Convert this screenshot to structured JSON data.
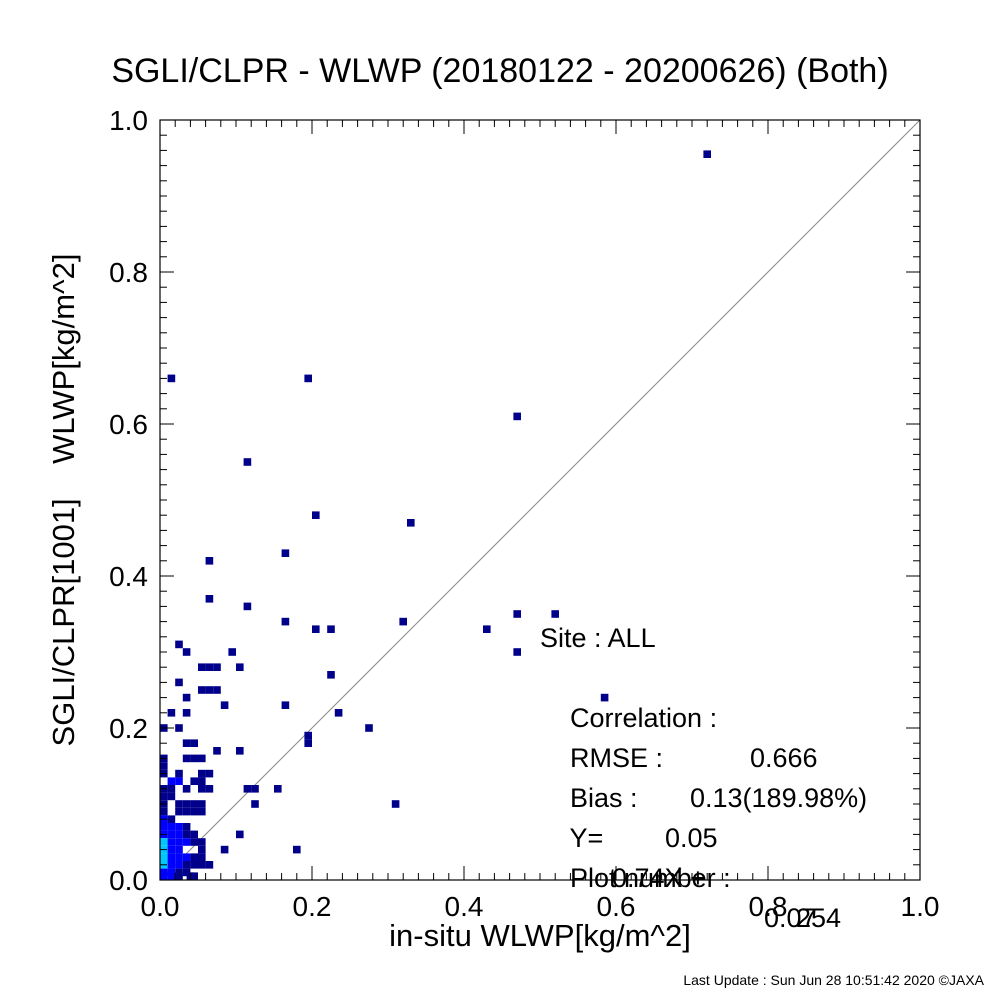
{
  "chart_data": {
    "type": "heatmap",
    "title": "SGLI/CLPR - WLWP (20180122 - 20200626) (Both)",
    "xlabel": "in-situ WLWP[kg/m^2]",
    "ylabel": "SGLI/CLPR[1001]    WLWP[kg/m^2]",
    "xlim": [
      0.0,
      1.0
    ],
    "ylim": [
      0.0,
      1.0
    ],
    "x_ticks": [
      "0.0",
      "0.2",
      "0.4",
      "0.6",
      "0.8",
      "1.0"
    ],
    "y_ticks": [
      "0.0",
      "0.2",
      "0.4",
      "0.6",
      "0.8",
      "1.0"
    ],
    "reference_line": "1:1",
    "colors": {
      "low": "#00008b",
      "mid": "#0000ff",
      "high": "#00c8ff",
      "line": "#888888"
    },
    "points": [
      [
        0.72,
        0.955,
        1
      ],
      [
        0.015,
        0.66,
        1
      ],
      [
        0.195,
        0.66,
        1
      ],
      [
        0.47,
        0.61,
        1
      ],
      [
        0.115,
        0.55,
        1
      ],
      [
        0.205,
        0.48,
        1
      ],
      [
        0.33,
        0.47,
        1
      ],
      [
        0.165,
        0.43,
        1
      ],
      [
        0.065,
        0.42,
        1
      ],
      [
        0.065,
        0.37,
        1
      ],
      [
        0.115,
        0.36,
        1
      ],
      [
        0.47,
        0.35,
        1
      ],
      [
        0.52,
        0.35,
        1
      ],
      [
        0.165,
        0.34,
        1
      ],
      [
        0.32,
        0.34,
        1
      ],
      [
        0.205,
        0.33,
        1
      ],
      [
        0.225,
        0.33,
        1
      ],
      [
        0.43,
        0.33,
        1
      ],
      [
        0.025,
        0.31,
        1
      ],
      [
        0.035,
        0.3,
        1
      ],
      [
        0.095,
        0.3,
        1
      ],
      [
        0.47,
        0.3,
        1
      ],
      [
        0.055,
        0.28,
        1
      ],
      [
        0.065,
        0.28,
        1
      ],
      [
        0.075,
        0.28,
        1
      ],
      [
        0.105,
        0.28,
        1
      ],
      [
        0.225,
        0.27,
        1
      ],
      [
        0.025,
        0.26,
        1
      ],
      [
        0.055,
        0.25,
        1
      ],
      [
        0.065,
        0.25,
        1
      ],
      [
        0.075,
        0.25,
        1
      ],
      [
        0.035,
        0.24,
        1
      ],
      [
        0.585,
        0.24,
        1
      ],
      [
        0.085,
        0.23,
        1
      ],
      [
        0.165,
        0.23,
        1
      ],
      [
        0.015,
        0.22,
        1
      ],
      [
        0.035,
        0.22,
        1
      ],
      [
        0.235,
        0.22,
        1
      ],
      [
        0.005,
        0.2,
        1
      ],
      [
        0.025,
        0.2,
        1
      ],
      [
        0.275,
        0.2,
        1
      ],
      [
        0.195,
        0.19,
        1
      ],
      [
        0.195,
        0.18,
        1
      ],
      [
        0.035,
        0.18,
        1
      ],
      [
        0.045,
        0.18,
        1
      ],
      [
        0.075,
        0.17,
        1
      ],
      [
        0.105,
        0.17,
        1
      ],
      [
        0.005,
        0.16,
        1
      ],
      [
        0.035,
        0.16,
        1
      ],
      [
        0.045,
        0.16,
        1
      ],
      [
        0.055,
        0.16,
        1
      ],
      [
        0.005,
        0.15,
        1
      ],
      [
        0.005,
        0.14,
        1
      ],
      [
        0.025,
        0.14,
        1
      ],
      [
        0.055,
        0.14,
        1
      ],
      [
        0.065,
        0.14,
        1
      ],
      [
        0.015,
        0.13,
        2
      ],
      [
        0.025,
        0.13,
        2
      ],
      [
        0.045,
        0.13,
        1
      ],
      [
        0.055,
        0.13,
        1
      ],
      [
        0.005,
        0.12,
        1
      ],
      [
        0.015,
        0.12,
        1
      ],
      [
        0.035,
        0.12,
        1
      ],
      [
        0.055,
        0.12,
        1
      ],
      [
        0.065,
        0.12,
        1
      ],
      [
        0.115,
        0.12,
        1
      ],
      [
        0.125,
        0.12,
        1
      ],
      [
        0.155,
        0.12,
        1
      ],
      [
        0.005,
        0.11,
        1
      ],
      [
        0.015,
        0.11,
        1
      ],
      [
        0.005,
        0.1,
        1
      ],
      [
        0.025,
        0.1,
        1
      ],
      [
        0.035,
        0.1,
        1
      ],
      [
        0.045,
        0.1,
        1
      ],
      [
        0.055,
        0.1,
        1
      ],
      [
        0.125,
        0.1,
        1
      ],
      [
        0.31,
        0.1,
        1
      ],
      [
        0.005,
        0.09,
        1
      ],
      [
        0.025,
        0.09,
        1
      ],
      [
        0.035,
        0.09,
        1
      ],
      [
        0.045,
        0.09,
        1
      ],
      [
        0.055,
        0.09,
        1
      ],
      [
        0.005,
        0.08,
        2
      ],
      [
        0.015,
        0.08,
        1
      ],
      [
        0.005,
        0.07,
        2
      ],
      [
        0.015,
        0.07,
        2
      ],
      [
        0.025,
        0.07,
        2
      ],
      [
        0.035,
        0.07,
        1
      ],
      [
        0.005,
        0.06,
        3
      ],
      [
        0.015,
        0.06,
        2
      ],
      [
        0.025,
        0.06,
        2
      ],
      [
        0.035,
        0.06,
        1
      ],
      [
        0.045,
        0.06,
        1
      ],
      [
        0.105,
        0.06,
        1
      ],
      [
        0.005,
        0.05,
        4
      ],
      [
        0.015,
        0.05,
        3
      ],
      [
        0.025,
        0.05,
        2
      ],
      [
        0.035,
        0.05,
        2
      ],
      [
        0.045,
        0.05,
        1
      ],
      [
        0.055,
        0.05,
        1
      ],
      [
        0.005,
        0.04,
        5
      ],
      [
        0.015,
        0.04,
        3
      ],
      [
        0.025,
        0.04,
        2
      ],
      [
        0.055,
        0.04,
        1
      ],
      [
        0.085,
        0.04,
        1
      ],
      [
        0.18,
        0.04,
        1
      ],
      [
        0.005,
        0.03,
        4
      ],
      [
        0.015,
        0.03,
        3
      ],
      [
        0.025,
        0.03,
        2
      ],
      [
        0.035,
        0.03,
        2
      ],
      [
        0.045,
        0.03,
        1
      ],
      [
        0.055,
        0.03,
        1
      ],
      [
        0.005,
        0.02,
        5
      ],
      [
        0.015,
        0.02,
        2
      ],
      [
        0.025,
        0.02,
        2
      ],
      [
        0.035,
        0.02,
        1
      ],
      [
        0.045,
        0.02,
        1
      ],
      [
        0.055,
        0.02,
        1
      ],
      [
        0.065,
        0.02,
        1
      ],
      [
        0.005,
        0.01,
        3
      ],
      [
        0.015,
        0.01,
        2
      ],
      [
        0.025,
        0.01,
        1
      ],
      [
        0.035,
        0.01,
        1
      ],
      [
        0.005,
        0.0,
        3
      ],
      [
        0.015,
        0.0,
        2
      ],
      [
        0.025,
        0.0,
        1
      ],
      [
        0.045,
        0.0,
        1
      ],
      [
        0.04,
        0.005,
        1
      ]
    ],
    "stats": {
      "site": {
        "label": "Site : ALL"
      },
      "correlation": {
        "label": "Correlation :",
        "value": "0.666"
      },
      "rmse": {
        "label": "RMSE :",
        "value": "0.13(189.98%)"
      },
      "bias": {
        "label": "Bias :",
        "value": "0.05"
      },
      "fit": {
        "label": "Y=",
        "value": "0.74X +",
        "intercept": "0.07"
      },
      "plot_number": {
        "label": "Plot number :",
        "value": "254"
      }
    }
  },
  "footer": "Last Update : Sun Jun 28 10:51:42 2020  ©JAXA"
}
